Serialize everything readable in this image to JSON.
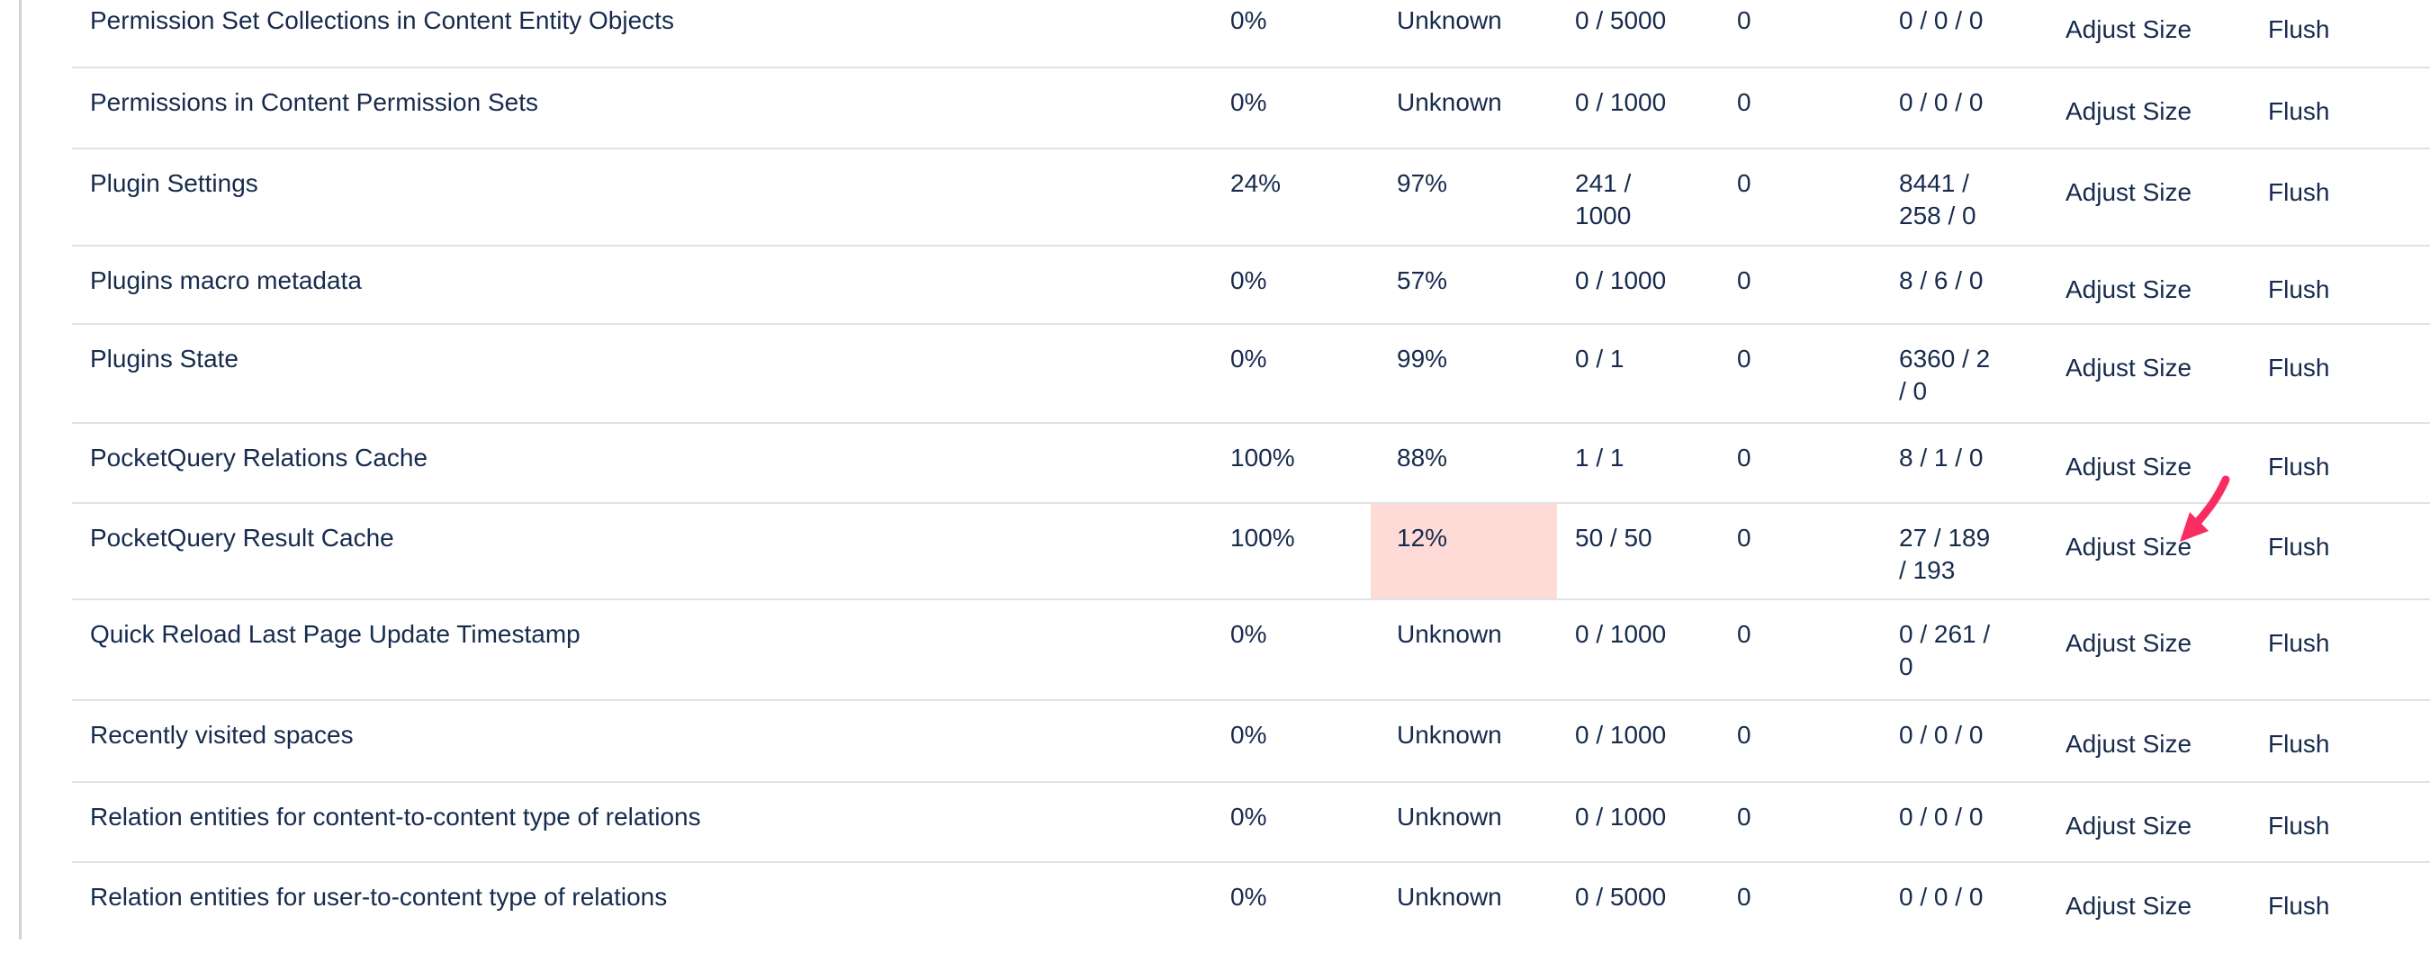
{
  "colors": {
    "text": "#172b4d",
    "divider": "#e0e2e6",
    "panel_rule": "#cfd2d7",
    "highlight_bg": "#ffdbd8",
    "arrow": "#fa2d62",
    "page_bg": "#ffffff"
  },
  "table": {
    "actions": {
      "adjust": "Adjust Size",
      "flush": "Flush"
    },
    "rows": [
      {
        "name": "Permission Set Collections in Content Entity Objects",
        "effectiveness": "0%",
        "percent_used": "Unknown",
        "entries": "0 / 5000",
        "queue": "0",
        "hit_miss_expiry": "0 / 0 / 0",
        "percent_used_highlighted": false
      },
      {
        "name": "Permissions in Content Permission Sets",
        "effectiveness": "0%",
        "percent_used": "Unknown",
        "entries": "0 / 1000",
        "queue": "0",
        "hit_miss_expiry": "0 / 0 / 0",
        "percent_used_highlighted": false
      },
      {
        "name": "Plugin Settings",
        "effectiveness": "24%",
        "percent_used": "97%",
        "entries": "241 / 1000",
        "queue": "0",
        "hit_miss_expiry": "8441 / 258 / 0",
        "percent_used_highlighted": false
      },
      {
        "name": "Plugins macro metadata",
        "effectiveness": "0%",
        "percent_used": "57%",
        "entries": "0 / 1000",
        "queue": "0",
        "hit_miss_expiry": "8 / 6 / 0",
        "percent_used_highlighted": false
      },
      {
        "name": "Plugins State",
        "effectiveness": "0%",
        "percent_used": "99%",
        "entries": "0 / 1",
        "queue": "0",
        "hit_miss_expiry": "6360 / 2 / 0",
        "percent_used_highlighted": false
      },
      {
        "name": "PocketQuery Relations Cache",
        "effectiveness": "100%",
        "percent_used": "88%",
        "entries": "1 / 1",
        "queue": "0",
        "hit_miss_expiry": "8 / 1 / 0",
        "percent_used_highlighted": false
      },
      {
        "name": "PocketQuery Result Cache",
        "effectiveness": "100%",
        "percent_used": "12%",
        "entries": "50 / 50",
        "queue": "0",
        "hit_miss_expiry": "27 / 189 / 193",
        "percent_used_highlighted": true
      },
      {
        "name": "Quick Reload Last Page Update Timestamp",
        "effectiveness": "0%",
        "percent_used": "Unknown",
        "entries": "0 / 1000",
        "queue": "0",
        "hit_miss_expiry": "0 / 261 / 0",
        "percent_used_highlighted": false
      },
      {
        "name": "Recently visited spaces",
        "effectiveness": "0%",
        "percent_used": "Unknown",
        "entries": "0 / 1000",
        "queue": "0",
        "hit_miss_expiry": "0 / 0 / 0",
        "percent_used_highlighted": false
      },
      {
        "name": "Relation entities for content-to-content type of relations",
        "effectiveness": "0%",
        "percent_used": "Unknown",
        "entries": "0 / 1000",
        "queue": "0",
        "hit_miss_expiry": "0 / 0 / 0",
        "percent_used_highlighted": false
      },
      {
        "name": "Relation entities for user-to-content type of relations",
        "effectiveness": "0%",
        "percent_used": "Unknown",
        "entries": "0 / 5000",
        "queue": "0",
        "hit_miss_expiry": "0 / 0 / 0",
        "percent_used_highlighted": false
      }
    ]
  },
  "annotation": {
    "arrow_color": "#fa2d62"
  }
}
